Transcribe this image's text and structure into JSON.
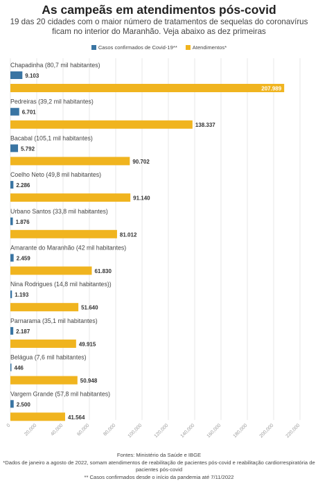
{
  "header": {
    "title": "As campeãs em atendimentos pós-covid",
    "subtitle": "19 das 20 cidades com o maior número de tratamentos de sequelas do coronavírus ficam no interior do Maranhão. Veja abaixo as dez primeiras"
  },
  "legend": {
    "cases_label": "Casos confirmados de Covid-19**",
    "atend_label": "Atendimentos*"
  },
  "colors": {
    "cases": "#3a75a3",
    "atend": "#f0b41f",
    "gridline": "#dddddd",
    "axis_text": "#999999"
  },
  "chart_data": {
    "type": "bar",
    "orientation": "horizontal",
    "categories": [
      "Chapadinha (80,7 mil habitantes)",
      "Pedreiras (39,2 mil habitantes)",
      "Bacabal (105,1 mil habitantes)",
      "Coelho Neto (49,8 mil habitantes)",
      "Urbano Santos (33,8 mil habitantes)",
      "Amarante do Maranhão (42 mil habitantes)",
      "Nina Rodrigues (14,8 mil habitantes))",
      "Parnarama (35,1 mil habitantes)",
      "Belágua (7,6 mil habitantes)",
      "Vargem Grande (57,8 mil habitantes)"
    ],
    "series": [
      {
        "name": "Casos confirmados de Covid-19**",
        "values": [
          9103,
          6701,
          5792,
          2286,
          1876,
          2459,
          1193,
          2187,
          446,
          2500
        ],
        "labels": [
          "9.103",
          "6.701",
          "5.792",
          "2.286",
          "1.876",
          "2.459",
          "1.193",
          "2.187",
          "446",
          "2.500"
        ]
      },
      {
        "name": "Atendimentos*",
        "values": [
          207989,
          138337,
          90702,
          91140,
          81012,
          61830,
          51640,
          49915,
          50948,
          41564
        ],
        "labels": [
          "207.989",
          "138.337",
          "90.702",
          "91.140",
          "81.012",
          "61.830",
          "51.640",
          "49.915",
          "50.948",
          "41.564"
        ]
      }
    ],
    "xlim": [
      0,
      220000
    ],
    "xticks": [
      0,
      20000,
      40000,
      60000,
      80000,
      100000,
      120000,
      140000,
      160000,
      180000,
      200000,
      220000
    ],
    "xtick_labels": [
      "0",
      "20,000",
      "40,000",
      "60,000",
      "80,000",
      "100,000",
      "120,000",
      "140,000",
      "160,000",
      "180,000",
      "200,000",
      "220,000"
    ],
    "grid": true,
    "legend_position": "top-center"
  },
  "footer": {
    "line1": "Fontes: Ministério da Saúde e IBGE",
    "line2": "*Dados de janeiro a agosto de 2022, somam atendimentos de reabilitação de pacientes pós-covid e reabilitação cardiorrespiratória de pacientes pós-covid",
    "line3": "** Casos confirmados desde o início da pandemia até 7/11/2022"
  }
}
